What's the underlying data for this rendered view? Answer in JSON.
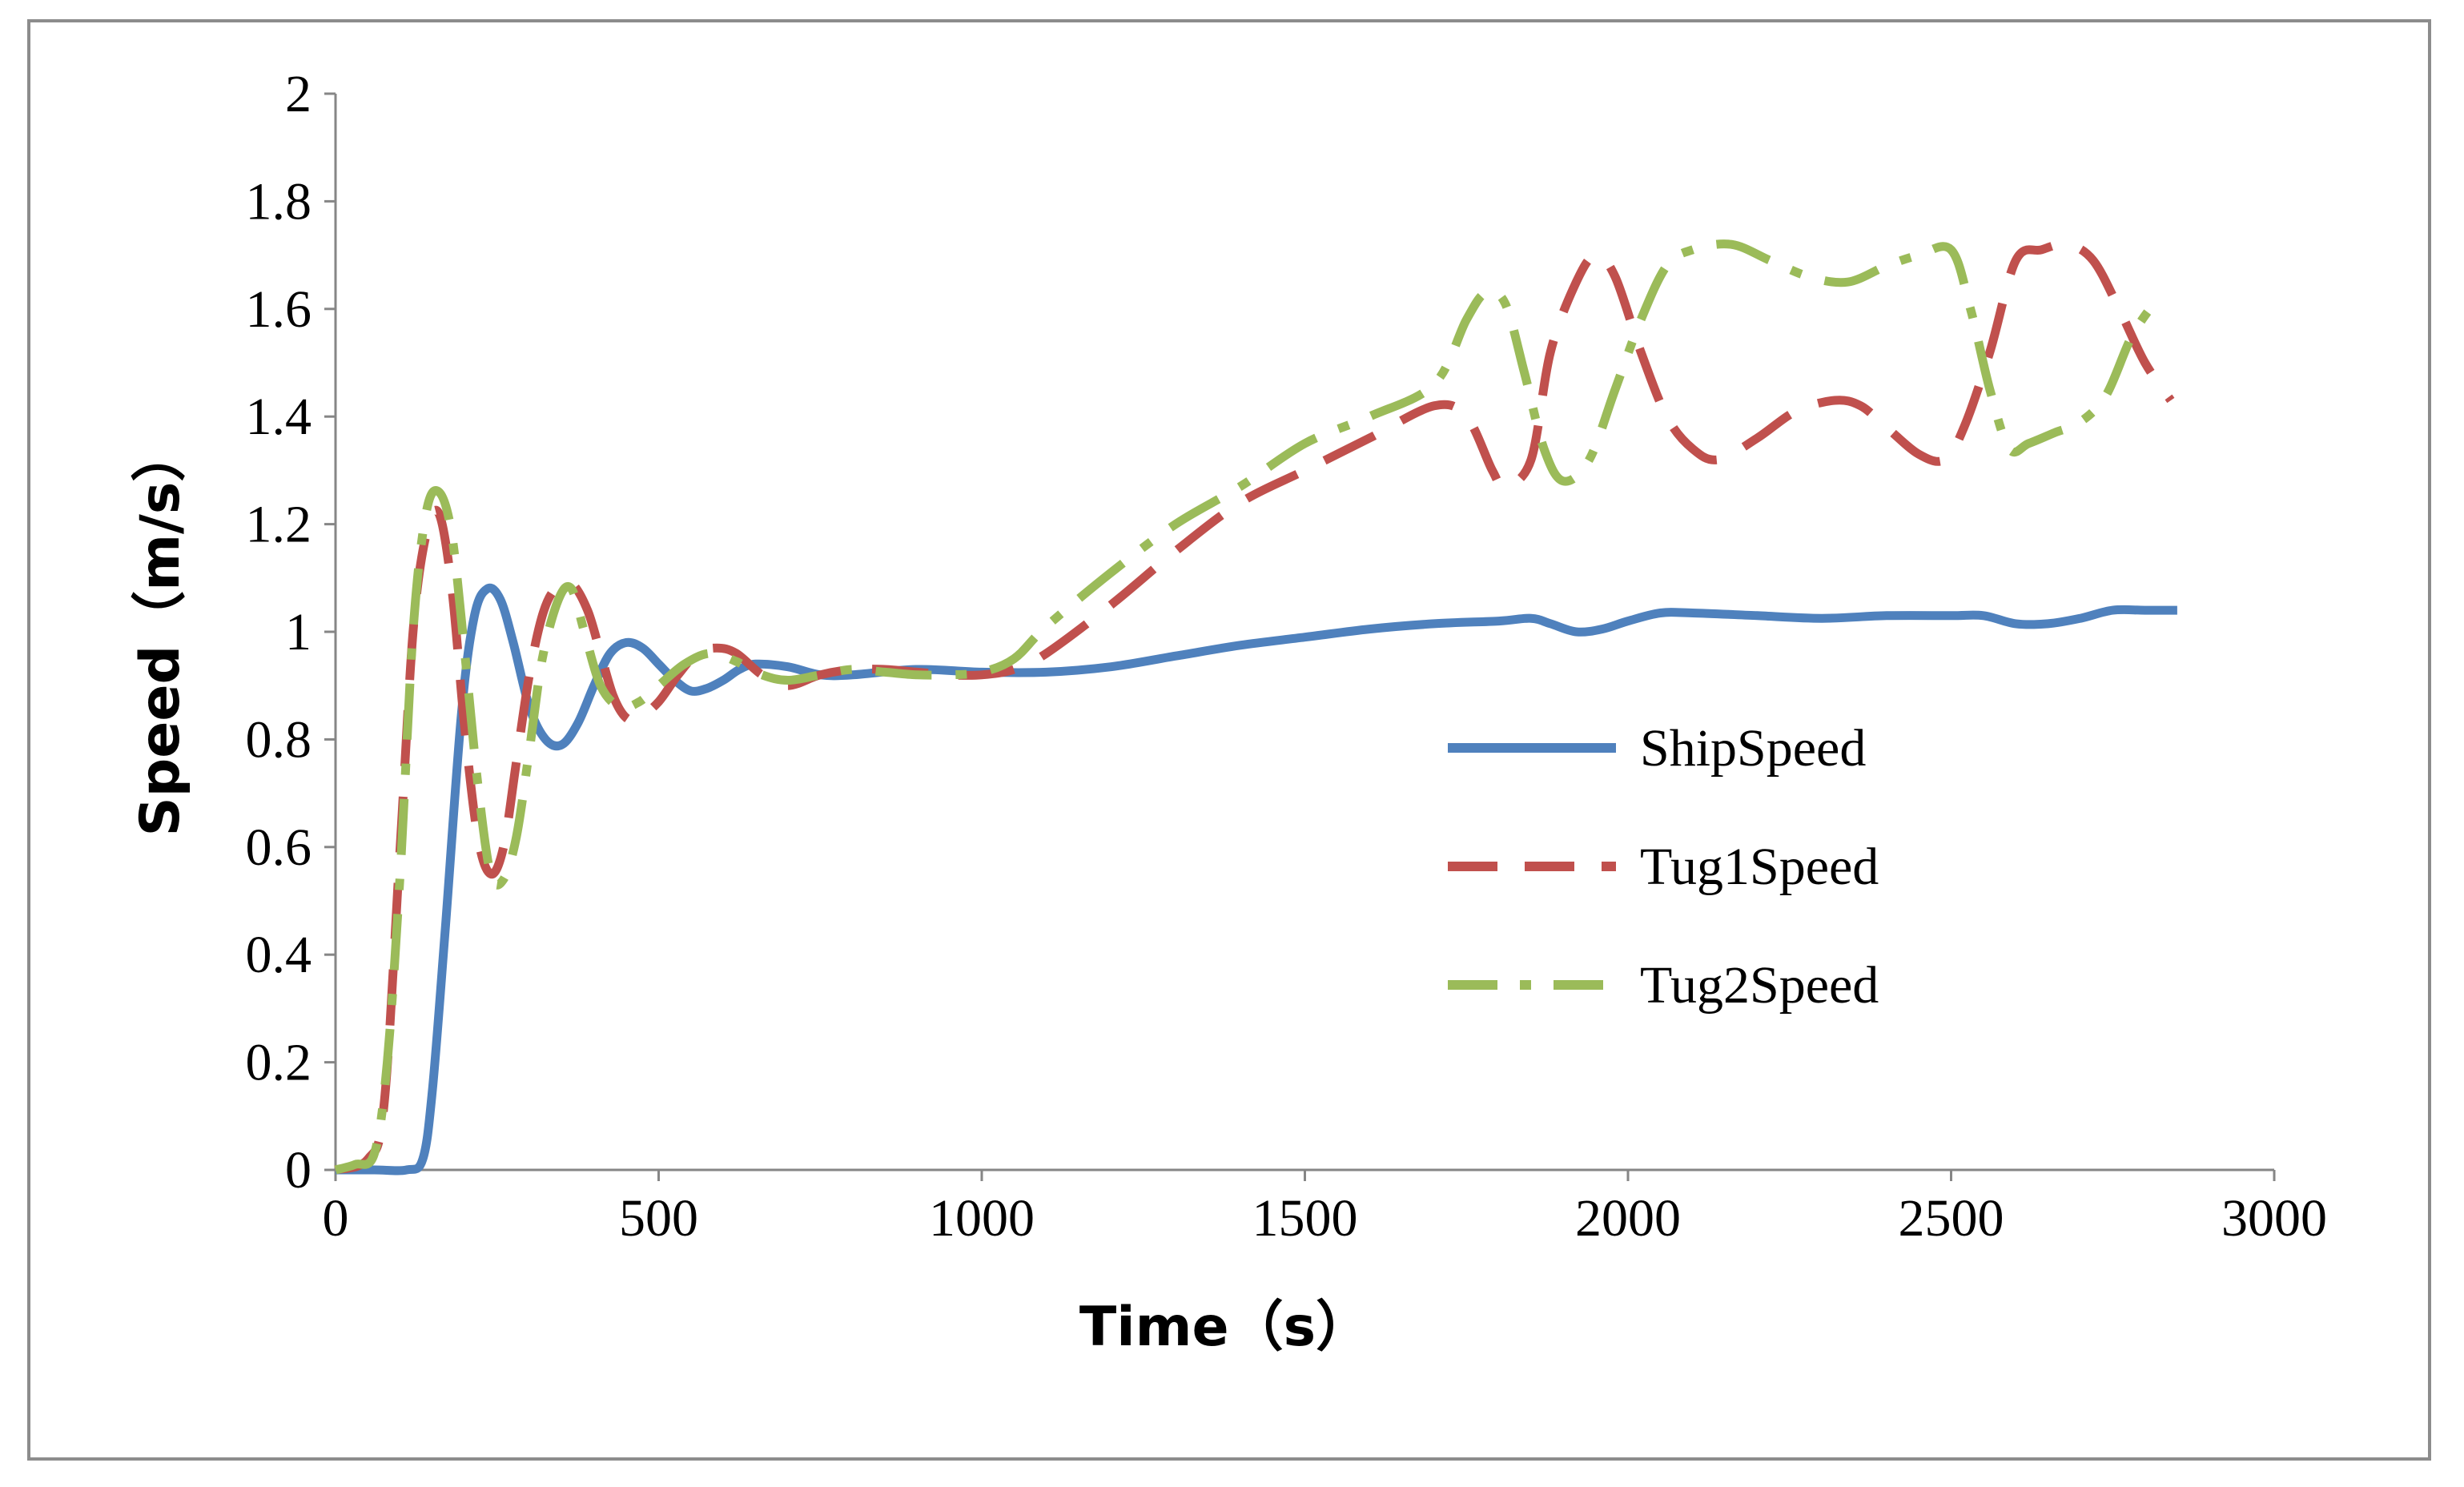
{
  "chart_data": {
    "type": "line",
    "xlabel": "Time（s）",
    "ylabel": "Speed（m/s）",
    "xlim": [
      0,
      3000
    ],
    "ylim": [
      0,
      2
    ],
    "xticks": [
      "0",
      "500",
      "1000",
      "1500",
      "2000",
      "2500",
      "3000"
    ],
    "yticks": [
      "0",
      "0.2",
      "0.4",
      "0.6",
      "0.8",
      "1",
      "1.2",
      "1.4",
      "1.6",
      "1.8",
      "2"
    ],
    "grid": false,
    "legend_position": "right",
    "series": [
      {
        "name": "ShipSpeed",
        "color": "#4f81bd",
        "style": "solid",
        "points": [
          [
            0,
            0
          ],
          [
            60,
            0
          ],
          [
            110,
            0
          ],
          [
            135,
            0.02
          ],
          [
            150,
            0.15
          ],
          [
            170,
            0.45
          ],
          [
            195,
            0.85
          ],
          [
            215,
            1.03
          ],
          [
            235,
            1.08
          ],
          [
            255,
            1.06
          ],
          [
            275,
            0.98
          ],
          [
            300,
            0.86
          ],
          [
            325,
            0.8
          ],
          [
            350,
            0.79
          ],
          [
            375,
            0.83
          ],
          [
            400,
            0.9
          ],
          [
            425,
            0.96
          ],
          [
            450,
            0.98
          ],
          [
            475,
            0.97
          ],
          [
            500,
            0.94
          ],
          [
            525,
            0.91
          ],
          [
            550,
            0.89
          ],
          [
            575,
            0.895
          ],
          [
            600,
            0.91
          ],
          [
            625,
            0.93
          ],
          [
            650,
            0.94
          ],
          [
            700,
            0.935
          ],
          [
            750,
            0.92
          ],
          [
            800,
            0.92
          ],
          [
            900,
            0.93
          ],
          [
            1000,
            0.925
          ],
          [
            1100,
            0.925
          ],
          [
            1200,
            0.935
          ],
          [
            1300,
            0.955
          ],
          [
            1400,
            0.975
          ],
          [
            1500,
            0.99
          ],
          [
            1600,
            1.005
          ],
          [
            1700,
            1.015
          ],
          [
            1800,
            1.02
          ],
          [
            1850,
            1.025
          ],
          [
            1880,
            1.015
          ],
          [
            1920,
            1.0
          ],
          [
            1960,
            1.005
          ],
          [
            2000,
            1.02
          ],
          [
            2050,
            1.035
          ],
          [
            2100,
            1.035
          ],
          [
            2200,
            1.03
          ],
          [
            2300,
            1.025
          ],
          [
            2400,
            1.03
          ],
          [
            2500,
            1.03
          ],
          [
            2550,
            1.03
          ],
          [
            2600,
            1.015
          ],
          [
            2650,
            1.015
          ],
          [
            2700,
            1.025
          ],
          [
            2750,
            1.04
          ],
          [
            2800,
            1.04
          ],
          [
            2850,
            1.04
          ]
        ]
      },
      {
        "name": "Tug1Speed",
        "color": "#c0504d",
        "style": "dashed",
        "points": [
          [
            0,
            0
          ],
          [
            50,
            0.02
          ],
          [
            75,
            0.12
          ],
          [
            100,
            0.6
          ],
          [
            120,
            1.0
          ],
          [
            140,
            1.18
          ],
          [
            160,
            1.22
          ],
          [
            180,
            1.08
          ],
          [
            200,
            0.82
          ],
          [
            220,
            0.62
          ],
          [
            240,
            0.55
          ],
          [
            260,
            0.6
          ],
          [
            280,
            0.76
          ],
          [
            300,
            0.92
          ],
          [
            320,
            1.03
          ],
          [
            340,
            1.08
          ],
          [
            365,
            1.09
          ],
          [
            390,
            1.04
          ],
          [
            410,
            0.96
          ],
          [
            430,
            0.88
          ],
          [
            450,
            0.84
          ],
          [
            470,
            0.84
          ],
          [
            500,
            0.87
          ],
          [
            530,
            0.92
          ],
          [
            560,
            0.96
          ],
          [
            590,
            0.97
          ],
          [
            620,
            0.96
          ],
          [
            660,
            0.92
          ],
          [
            700,
            0.9
          ],
          [
            750,
            0.92
          ],
          [
            800,
            0.93
          ],
          [
            850,
            0.93
          ],
          [
            900,
            0.925
          ],
          [
            950,
            0.92
          ],
          [
            1000,
            0.92
          ],
          [
            1050,
            0.93
          ],
          [
            1100,
            0.96
          ],
          [
            1200,
            1.05
          ],
          [
            1300,
            1.15
          ],
          [
            1400,
            1.24
          ],
          [
            1500,
            1.3
          ],
          [
            1600,
            1.36
          ],
          [
            1700,
            1.42
          ],
          [
            1750,
            1.4
          ],
          [
            1790,
            1.3
          ],
          [
            1810,
            1.27
          ],
          [
            1850,
            1.32
          ],
          [
            1880,
            1.52
          ],
          [
            1920,
            1.65
          ],
          [
            1950,
            1.7
          ],
          [
            1980,
            1.66
          ],
          [
            2020,
            1.52
          ],
          [
            2060,
            1.4
          ],
          [
            2100,
            1.34
          ],
          [
            2140,
            1.32
          ],
          [
            2200,
            1.36
          ],
          [
            2260,
            1.41
          ],
          [
            2320,
            1.43
          ],
          [
            2360,
            1.42
          ],
          [
            2400,
            1.38
          ],
          [
            2450,
            1.33
          ],
          [
            2490,
            1.32
          ],
          [
            2520,
            1.38
          ],
          [
            2560,
            1.52
          ],
          [
            2600,
            1.69
          ],
          [
            2640,
            1.71
          ],
          [
            2680,
            1.72
          ],
          [
            2720,
            1.69
          ],
          [
            2760,
            1.6
          ],
          [
            2800,
            1.5
          ],
          [
            2840,
            1.43
          ]
        ]
      },
      {
        "name": "Tug2Speed",
        "color": "#9bbb59",
        "style": "dashdot",
        "points": [
          [
            0,
            0
          ],
          [
            30,
            0.01
          ],
          [
            60,
            0.03
          ],
          [
            80,
            0.2
          ],
          [
            100,
            0.55
          ],
          [
            120,
            1.0
          ],
          [
            140,
            1.22
          ],
          [
            160,
            1.26
          ],
          [
            180,
            1.18
          ],
          [
            200,
            0.96
          ],
          [
            220,
            0.72
          ],
          [
            240,
            0.55
          ],
          [
            260,
            0.54
          ],
          [
            280,
            0.62
          ],
          [
            300,
            0.78
          ],
          [
            320,
            0.95
          ],
          [
            345,
            1.06
          ],
          [
            365,
            1.08
          ],
          [
            385,
            1.0
          ],
          [
            410,
            0.9
          ],
          [
            440,
            0.86
          ],
          [
            470,
            0.87
          ],
          [
            500,
            0.9
          ],
          [
            540,
            0.94
          ],
          [
            580,
            0.96
          ],
          [
            620,
            0.945
          ],
          [
            660,
            0.92
          ],
          [
            700,
            0.91
          ],
          [
            750,
            0.92
          ],
          [
            800,
            0.93
          ],
          [
            850,
            0.925
          ],
          [
            900,
            0.92
          ],
          [
            950,
            0.92
          ],
          [
            1000,
            0.925
          ],
          [
            1050,
            0.95
          ],
          [
            1100,
            1.01
          ],
          [
            1200,
            1.11
          ],
          [
            1300,
            1.2
          ],
          [
            1400,
            1.27
          ],
          [
            1500,
            1.35
          ],
          [
            1600,
            1.4
          ],
          [
            1700,
            1.46
          ],
          [
            1750,
            1.58
          ],
          [
            1780,
            1.63
          ],
          [
            1810,
            1.61
          ],
          [
            1840,
            1.48
          ],
          [
            1870,
            1.34
          ],
          [
            1900,
            1.28
          ],
          [
            1940,
            1.32
          ],
          [
            1980,
            1.45
          ],
          [
            2020,
            1.58
          ],
          [
            2060,
            1.68
          ],
          [
            2100,
            1.71
          ],
          [
            2160,
            1.72
          ],
          [
            2220,
            1.69
          ],
          [
            2280,
            1.66
          ],
          [
            2340,
            1.65
          ],
          [
            2400,
            1.68
          ],
          [
            2450,
            1.7
          ],
          [
            2500,
            1.71
          ],
          [
            2530,
            1.6
          ],
          [
            2560,
            1.45
          ],
          [
            2590,
            1.34
          ],
          [
            2620,
            1.35
          ],
          [
            2660,
            1.37
          ],
          [
            2700,
            1.39
          ],
          [
            2740,
            1.44
          ],
          [
            2780,
            1.55
          ],
          [
            2820,
            1.62
          ]
        ]
      }
    ]
  }
}
